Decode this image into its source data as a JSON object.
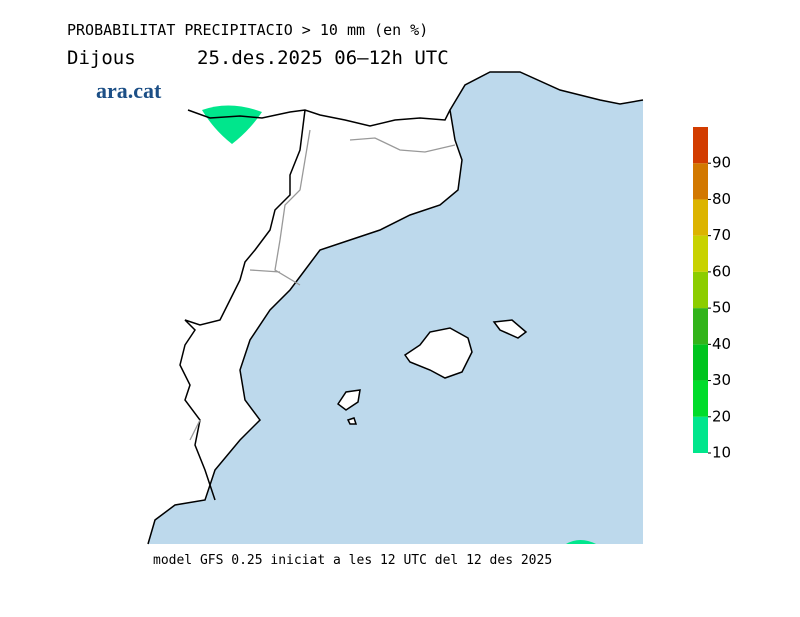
{
  "header": {
    "title": "PROBABILITAT PRECIPITACIO > 10 mm (en %)",
    "day": "Dijous",
    "period": "25.des.2025 06–12h UTC",
    "logo": "ara.cat"
  },
  "colorbar": {
    "range": [
      10,
      100
    ],
    "ticks": [
      10,
      20,
      30,
      40,
      50,
      60,
      70,
      80,
      90
    ],
    "colors": [
      "#00e68c",
      "#00dc2a",
      "#00c41e",
      "#32b41a",
      "#8ccd00",
      "#c8d200",
      "#dcb400",
      "#d27800",
      "#d23c00",
      "#c80000"
    ]
  },
  "footer": "model GFS 0.25 iniciat a les 12 UTC del 12 des 2025"
}
